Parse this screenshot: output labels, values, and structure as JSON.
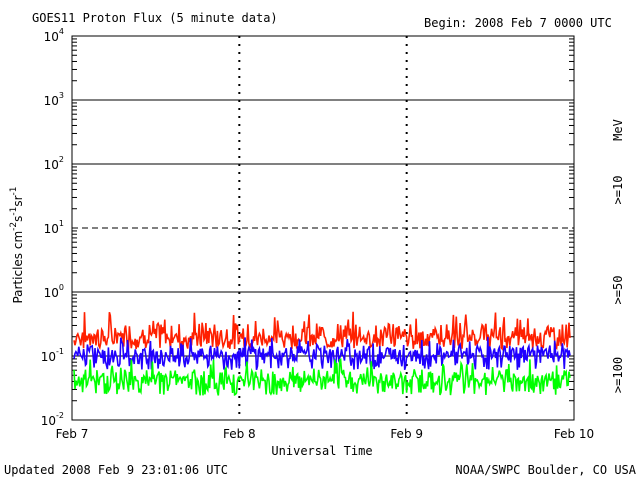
{
  "header": {
    "title": "GOES11 Proton Flux (5 minute data)",
    "begin": "Begin: 2008 Feb 7 0000 UTC"
  },
  "footer": {
    "updated": "Updated 2008 Feb  9 23:01:06 UTC",
    "credit": "NOAA/SWPC Boulder, CO USA"
  },
  "chart_data": {
    "type": "line",
    "title": "GOES11 Proton Flux (5 minute data)",
    "xlabel": "Universal Time",
    "ylabel": "Particles cm^-2 s^-1 sr^-1",
    "y_scale": "log",
    "ylim": [
      0.01,
      10000
    ],
    "xlim": [
      "Feb 7",
      "Feb 10"
    ],
    "x_ticks": [
      "Feb 7",
      "Feb 8",
      "Feb 9",
      "Feb 10"
    ],
    "y_ticks": [
      {
        "base": "10",
        "exp": "-2"
      },
      {
        "base": "10",
        "exp": "-1"
      },
      {
        "base": "10",
        "exp": "0"
      },
      {
        "base": "10",
        "exp": "1"
      },
      {
        "base": "10",
        "exp": "2"
      },
      {
        "base": "10",
        "exp": "3"
      },
      {
        "base": "10",
        "exp": "4"
      }
    ],
    "units_label": "MeV",
    "grid": true,
    "series": [
      {
        "name": ">=10",
        "color": "#ff2000",
        "baseline": 0.17,
        "min": 0.12,
        "max": 0.5
      },
      {
        "name": ">=50",
        "color": "#2000ff",
        "baseline": 0.09,
        "min": 0.055,
        "max": 0.2
      },
      {
        "name": ">=100",
        "color": "#00ff00",
        "baseline": 0.035,
        "min": 0.022,
        "max": 0.09
      }
    ]
  }
}
